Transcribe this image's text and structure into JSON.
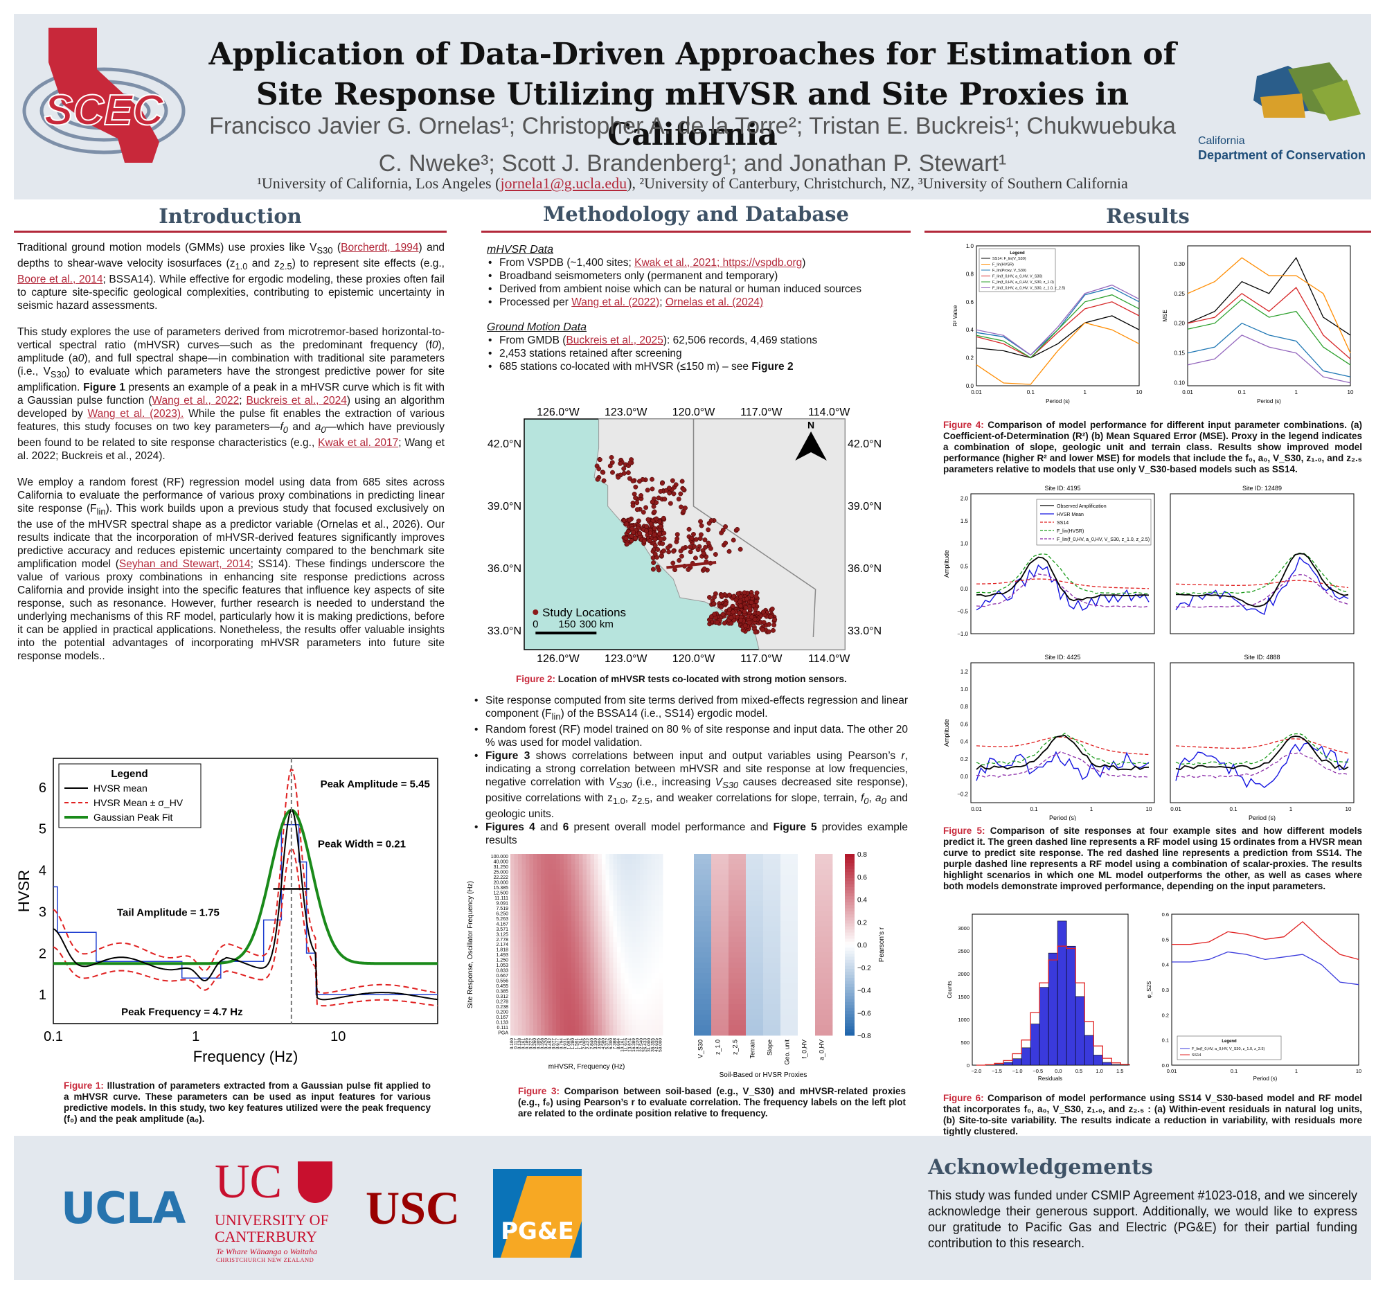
{
  "header": {
    "title": "Application of Data-Driven Approaches for Estimation of Site Response Utilizing mHVSR and Site Proxies in California",
    "authors": "Francisco Javier G. Ornelas¹; Christopher A. de la Torre²; Tristan E. Buckreis¹; Chukwuebuka C. Nweke³; Scott J. Brandenberg¹; and Jonathan P. Stewart¹",
    "affil_pre": "¹University of California, Los Angeles (",
    "email": "jornela1@g.ucla.edu",
    "affil_post": "), ²University of Canterbury, Christchurch, NZ, ³University of Southern California",
    "scec_logo": "SCEC",
    "doc_logo_line1": "California",
    "doc_logo_line2": "Department of Conservation"
  },
  "intro": {
    "title": "Introduction",
    "p1_a": "Traditional ground motion models (GMMs) use proxies like V",
    "p1_sub": "S30",
    "p1_b": " (",
    "p1_ref1": "Borcherdt, 1994",
    "p1_c": ") and depths to shear-wave velocity isosurfaces (z",
    "p1_sub2": "1.0",
    "p1_d": " and z",
    "p1_sub3": "2.5",
    "p1_e": ") to represent site effects (e.g., ",
    "p1_ref2": "Boore et al., 2014",
    "p1_f": "; BSSA14). While effective for ergodic modeling, these proxies often fail to capture site-specific geological complexities, contributing to epistemic uncertainty in seismic hazard assessments.",
    "p2_a": "This study explores the use of parameters derived from microtremor-based horizontal-to-vertical spectral ratio (mHVSR) curves—such as the predominant frequency (f",
    "p2_b": "), amplitude (a",
    "p2_c": "), and full spectral shape—in combination with traditional site parameters (i.e., V",
    "p2_d": ") to evaluate which parameters have the strongest predictive power for site amplification. ",
    "p2_fig": "Figure 1",
    "p2_e": " presents an example of a peak in a mHVSR curve which is fit with a Gaussian pulse function (",
    "p2_ref1": "Wang et al., 2022",
    "p2_f": "; ",
    "p2_ref2": "Buckreis et al., 2024",
    "p2_g": ") using an algorithm developed by ",
    "p2_ref3": "Wang et al. (2023).",
    "p2_h": " While the pulse fit enables the extraction of various features, this study focuses on two key parameters—",
    "p2_i": " and ",
    "p2_j": "—which have previously been found to be related to site response characteristics (e.g., ",
    "p2_ref4": "Kwak et al. 2017",
    "p2_k": "; Wang et al. 2022; Buckreis et al., 2024).",
    "p3_a": "We employ a random forest (RF) regression model using data from 685 sites across California to evaluate the performance of various proxy combinations in predicting linear site response (F",
    "p3_sub": "lin",
    "p3_b": "). This work builds upon a previous study that focused exclusively on the use of the mHVSR spectral shape as a predictor variable (Ornelas et al., 2026). Our results indicate that the incorporation of mHVSR-derived features significantly improves predictive accuracy and reduces epistemic uncertainty compared to the benchmark site amplification model (",
    "p3_ref": "Seyhan and Stewart, 2014",
    "p3_c": "; SS14). These findings underscore the value of various proxy combinations in enhancing site response predictions across California and provide insight into the specific features that influence key aspects of site response, such as resonance. However, further research is needed to understand the underlying mechanisms of this RF model, particularly how it is making predictions, before it can be applied in practical applications. Nonetheless, the results offer valuable insights into the potential advantages of incorporating mHVSR parameters into future site response models..",
    "fig1_label": "Figure 1:",
    "fig1_caption": " Illustration of parameters extracted from a Gaussian pulse fit applied to a mHVSR curve. These parameters can be used as input features for various predictive models. In this study, two key features utilized were the peak frequency (f₀) and the peak amplitude (a₀)."
  },
  "method": {
    "title": "Methodology and Database",
    "mhvsr_title": "mHVSR Data",
    "mhvsr_items": [
      {
        "pre": "From VSPDB (~1,400 sites; ",
        "ref": "Kwak et al., 2021; https://vspdb.org",
        "post": ")"
      },
      {
        "pre": "Broadband seismometers only (permanent and temporary)",
        "ref": "",
        "post": ""
      },
      {
        "pre": "Derived from ambient noise  which can be natural or human induced sources",
        "ref": "",
        "post": ""
      },
      {
        "pre": "Processed per ",
        "ref": "Wang et al. (2022)",
        "post": "; ",
        "ref2": "Ornelas et al. (2024)"
      }
    ],
    "gm_title": "Ground Motion Data",
    "gm_item1_pre": "From GMDB (",
    "gm_item1_ref": "Buckreis et al., 2025",
    "gm_item1_post": "): 62,506 records, 4,469 stations",
    "gm_item2": "2,453 stations retained after screening",
    "gm_item3_pre": "685 stations co-located with mHVSR (≤150 m) – see ",
    "gm_item3_fig": "Figure 2",
    "fig2_label": "Figure 2:",
    "fig2_caption": " Location of mHVSR tests co-located with strong motion sensors.",
    "b1_a": "Site response computed from site terms derived from mixed-effects regression and linear component (F",
    "b1_sub": "lin",
    "b1_b": ") of the BSSA14 (i.e., SS14) ergodic model.",
    "b2": "Random forest (RF) model trained on 80 % of site response and input data. The other 20 % was used for model validation.",
    "b3_fig": "Figure 3",
    "b3_a": " shows correlations between input and output variables using Pearson’s ",
    "b3_r": "r",
    "b3_b": ", indicating a strong correlation between mHVSR and site response at low frequencies, negative correlation with ",
    "b3_vs": "V",
    "b3_vs_sub": "S30",
    "b3_c": " (i.e., increasing ",
    "b3_d": " causes decreased site response), positive correlations with z",
    "b3_e": ", z",
    "b3_f": ", and weaker correlations for slope, terrain, ",
    "b3_g": " and geologic units.",
    "b4_fig1": "Figures 4",
    "b4_a": " and ",
    "b4_fig2": "6",
    "b4_b": " present overall model performance and ",
    "b4_fig3": "Figure 5",
    "b4_c": " provides example results",
    "fig3_label": "Figure 3:",
    "fig3_caption": " Comparison between soil-based (e.g., V_S30) and mHVSR-related proxies (e.g., f₀) using Pearson’s r to evaluate correlation. The frequency labels on the left plot are related to the ordinate position relative to frequency."
  },
  "results": {
    "title": "Results",
    "fig4_label": "Figure 4:",
    "fig4_caption": " Comparison of model performance for different input parameter combinations. (a) Coefficient-of-Determination (R²) (b) Mean Squared Error (MSE). Proxy in the legend indicates a combination of slope, geologic unit and terrain class. Results show improved model performance (higher R² and lower MSE) for models that include the f₀, a₀, V_S30, z₁.₀, and z₂.₅ parameters relative to models that use only V_S30-based models such as SS14.",
    "fig5_label": "Figure 5:",
    "fig5_caption": " Comparison of site responses at four example sites and how different models predict it. The green dashed line represents a RF model using 15 ordinates from a HVSR mean curve to predict site response. The red dashed line represents a prediction from SS14. The purple dashed line represents a RF model using a combination of scalar-proxies. The results highlight scenarios in which one ML model outperforms the other, as well as cases where both models demonstrate improved performance, depending on the input parameters.",
    "fig6_label": "Figure 6:",
    "fig6_caption": " Comparison of model performance using SS14 V_S30-based model and RF model that incorporates f₀, a₀, V_S30, z₁.₀, and z₂.₅ : (a) Within-event residuals in natural log units, (b) Site-to-site variability. The results indicate a reduction in variability, with residuals more tightly clustered."
  },
  "footer": {
    "ack_title": "Acknowledgements",
    "ack_text": "This study was funded under CSMIP Agreement #1023-018, and we sincerely acknowledge their generous support. Additionally, we would like to express our gratitude to Pacific Gas and Electric (PG&E) for their partial funding contribution to this research.",
    "ucla": "UCLA",
    "uc_big": "UC",
    "uc_line1": "UNIVERSITY OF",
    "uc_line2": "CANTERBURY",
    "uc_maori": "Te Whare Wānanga o Waitaha",
    "uc_city": "CHRISTCHURCH NEW ZEALAND",
    "usc": "USC",
    "pge": "PG&E"
  },
  "figure1": {
    "legend_title": "Legend",
    "legend": [
      "HVSR mean",
      "HVSR Mean ± σ_HV",
      "Gaussian Peak Fit"
    ],
    "xlabel": "Frequency (Hz)",
    "ylabel": "HVSR",
    "xticks": [
      "0.1",
      "1",
      "10"
    ],
    "yticks": [
      "1",
      "2",
      "3",
      "4",
      "5",
      "6"
    ],
    "ann_peak_amp": "Peak Amplitude = 5.45",
    "ann_peak_width": "Peak Width = 0.21",
    "ann_tail": "Tail Amplitude = 1.75",
    "ann_peak_freq": "Peak Frequency = 4.7 Hz",
    "colors": {
      "mean": "#000000",
      "std": "#e02020",
      "fit": "#1a8a1a",
      "steps": "#2040d0"
    }
  },
  "figure2": {
    "lon_labels": [
      "126.0°W",
      "123.0°W",
      "120.0°W",
      "117.0°W",
      "114.0°W"
    ],
    "lat_labels": [
      "42.0°N",
      "39.0°N",
      "36.0°N",
      "33.0°N"
    ],
    "legend": "Study Locations",
    "scale": [
      "0",
      "150",
      "300 km"
    ],
    "north": "N",
    "colors": {
      "ocean": "#b7e4dd",
      "land": "#e8e8e8",
      "points": "#8b1a1a"
    }
  },
  "figure3": {
    "ylabel": "Site Response, Oscillator Frequency (Hz)",
    "xlabel_left": "mHVSR, Frequency (Hz)",
    "xlabel_right": "Soil-Based or HVSR Proxies",
    "right_cats": [
      "V_S30",
      "z_1.0",
      "z_2.5",
      "Terrain",
      "Slope",
      "Geo. unit",
      "f_0,HV",
      "a_0,HV"
    ],
    "cbar_label": "Pearson’s r",
    "cbar_ticks": [
      "0.8",
      "0.6",
      "0.4",
      "0.2",
      "0.0",
      "−0.2",
      "−0.4",
      "−0.6",
      "−0.8"
    ],
    "ytick_labels": [
      "100.000",
      "40.000",
      "31.250",
      "25.000",
      "22.222",
      "20.000",
      "15.385",
      "12.500",
      "11.111",
      "9.091",
      "7.519",
      "6.250",
      "5.263",
      "4.167",
      "3.571",
      "3.125",
      "2.778",
      "2.174",
      "1.818",
      "1.493",
      "1.250",
      "1.053",
      "0.833",
      "0.667",
      "0.556",
      "0.455",
      "0.385",
      "0.312",
      "0.278",
      "0.238",
      "0.200",
      "0.167",
      "0.133",
      "0.111",
      "PGA"
    ]
  },
  "figure4": {
    "ylabel_a": "R² Value",
    "ylabel_b": "MSE",
    "xlabel": "Period (s)",
    "xticks": [
      "0.01",
      "0.1",
      "1",
      "10"
    ],
    "yticks_a": [
      "0.0",
      "0.2",
      "0.4",
      "0.6",
      "0.8",
      "1.0"
    ],
    "yticks_b": [
      "0.10",
      "0.15",
      "0.20",
      "0.25",
      "0.30"
    ],
    "legend_title": "Legend",
    "legend": [
      "SS14: F_lin(V_S30)",
      "F_lin(HVSR)",
      "F_lin(Proxy, V_S30)",
      "F_lin(f_0,HV, a_0,HV, V_S30)",
      "F_lin(f_0,HV, a_0,HV, V_S30, z_1.0)",
      "F_lin(f_0,HV, a_0,HV, V_S30, z_1.0, z_2.5)"
    ]
  },
  "figure5": {
    "titles": [
      "Site ID: 4195",
      "Site ID: 12489",
      "Site ID: 4425",
      "Site ID: 4888"
    ],
    "ylabel": "Amplitude",
    "xlabel": "Period (s)",
    "xticks": [
      "0.01",
      "0.1",
      "1",
      "10"
    ],
    "yticks_top": [
      "−1.0",
      "−0.5",
      "0.0",
      "0.5",
      "1.0",
      "1.5",
      "2.0"
    ],
    "yticks_bottom": [
      "−0.2",
      "0.0",
      "0.2",
      "0.4",
      "0.6",
      "0.8",
      "1.0",
      "1.2"
    ],
    "legend": [
      "Observed Amplification",
      "HVSR Mean",
      "SS14",
      "F_lin(HVSR)",
      "F_lin(f_0,HV, a_0,HV, V_S30, z_1.0, z_2.5)"
    ]
  },
  "figure6": {
    "xlabel_a": "Residuals",
    "ylabel_a": "Counts",
    "xticks_a": [
      "−2.0",
      "−1.5",
      "−1.0",
      "−0.5",
      "0.0",
      "0.5",
      "1.0",
      "1.5"
    ],
    "yticks_a": [
      "0",
      "500",
      "1000",
      "1500",
      "2000",
      "2500",
      "3000"
    ],
    "xlabel_b": "Period (s)",
    "ylabel_b": "φ_S2S",
    "xticks_b": [
      "0.01",
      "0.1",
      "1",
      "10"
    ],
    "yticks_b": [
      "0.0",
      "0.1",
      "0.2",
      "0.3",
      "0.4",
      "0.5",
      "0.6"
    ],
    "legend_title": "Legend",
    "legend": [
      "F_lin(f_0,HV, a_0,HV, V_S30, z_1.0, z_2.5)",
      "SS14"
    ]
  }
}
